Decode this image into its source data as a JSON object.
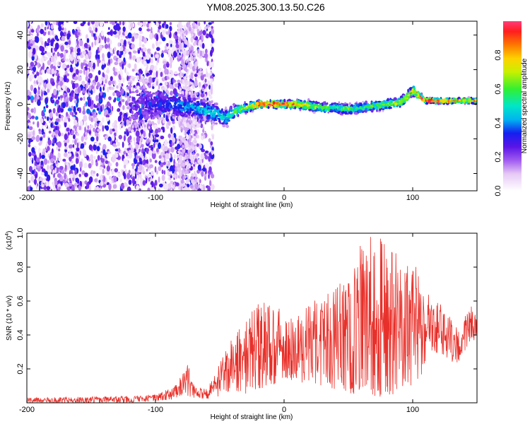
{
  "figure_title": "YM08.2025.300.13.50.C26",
  "chart_data": [
    {
      "type": "heatmap",
      "xlabel": "Height of straight line (km)",
      "ylabel": "Frequency (Hz)",
      "xlim": [
        -200,
        150
      ],
      "ylim": [
        -50,
        48
      ],
      "x_ticks": [
        -200,
        -100,
        0,
        100
      ],
      "y_ticks": [
        -40,
        -20,
        0,
        20,
        40
      ],
      "x_tick_labels": [
        "-200",
        "-100",
        "0",
        "100"
      ],
      "y_tick_labels": [
        "-40",
        "-20",
        "0",
        "20",
        "40"
      ],
      "colorbar": {
        "label": "Normalized spectral amplitude",
        "range": [
          0,
          1
        ],
        "ticks": [
          0,
          0.2,
          0.4,
          0.6,
          0.8
        ],
        "tick_labels": [
          "0.0",
          "0.2",
          "0.4",
          "0.6",
          "0.8"
        ],
        "stops": [
          {
            "v": 0.0,
            "color": "#ffffff"
          },
          {
            "v": 0.1,
            "color": "#e6c8f5"
          },
          {
            "v": 0.18,
            "color": "#a05af0"
          },
          {
            "v": 0.26,
            "color": "#5a14e6"
          },
          {
            "v": 0.34,
            "color": "#1420f0"
          },
          {
            "v": 0.42,
            "color": "#00b4f0"
          },
          {
            "v": 0.5,
            "color": "#00e6c8"
          },
          {
            "v": 0.6,
            "color": "#32f032"
          },
          {
            "v": 0.7,
            "color": "#c8f000"
          },
          {
            "v": 0.78,
            "color": "#ffd200"
          },
          {
            "v": 0.86,
            "color": "#ff7800"
          },
          {
            "v": 0.94,
            "color": "#ff1e1e"
          },
          {
            "v": 1.0,
            "color": "#ff3c78"
          }
        ]
      },
      "ridge": {
        "x": [
          -110,
          -100,
          -90,
          -80,
          -70,
          -60,
          -50,
          -45,
          -40,
          -35,
          -30,
          -20,
          -10,
          0,
          10,
          20,
          30,
          40,
          50,
          60,
          70,
          80,
          90,
          95,
          100,
          105,
          110,
          120,
          130,
          140,
          150
        ],
        "freq": [
          0,
          0,
          0,
          -1,
          -2,
          -4,
          -6,
          -8,
          -5,
          -3,
          -2,
          0,
          0,
          0,
          0,
          -1,
          -2,
          -2,
          -3,
          -2,
          -1,
          0,
          1,
          4,
          8,
          5,
          2,
          2,
          2,
          2,
          2
        ],
        "amplitude": [
          0.25,
          0.3,
          0.35,
          0.4,
          0.42,
          0.45,
          0.48,
          0.45,
          0.55,
          0.6,
          0.65,
          0.9,
          0.95,
          0.9,
          0.85,
          0.7,
          0.6,
          0.55,
          0.6,
          0.55,
          0.6,
          0.65,
          0.7,
          0.75,
          0.8,
          0.85,
          0.9,
          0.9,
          0.85,
          0.8,
          0.8
        ],
        "spread_hz": [
          22,
          14,
          10,
          10,
          9,
          9,
          8,
          7,
          6,
          5,
          4,
          3,
          3,
          3,
          3,
          4,
          4,
          4,
          4,
          4,
          4,
          4,
          4,
          4,
          4,
          3,
          2,
          2,
          2,
          2,
          2
        ]
      }
    },
    {
      "type": "line",
      "xlabel": "Height of straight line (km)",
      "ylabel": "SNR (10 * v/v)",
      "y_multiplier_label": "(x10",
      "y_multiplier_exponent": "4",
      "y_multiplier_close": ")",
      "xlim": [
        -200,
        150
      ],
      "ylim": [
        0,
        1.0
      ],
      "x_ticks": [
        -200,
        -100,
        0,
        100
      ],
      "y_ticks": [
        0.2,
        0.4,
        0.6,
        0.8,
        1.0
      ],
      "x_tick_labels": [
        "-200",
        "-100",
        "0",
        "100"
      ],
      "y_tick_labels": [
        "0.2",
        "0.4",
        "0.6",
        "0.8",
        "1.0"
      ],
      "line_color": "#e8302a",
      "envelope": {
        "x": [
          -200,
          -120,
          -100,
          -85,
          -80,
          -75,
          -70,
          -60,
          -50,
          -40,
          -30,
          -20,
          -10,
          0,
          10,
          20,
          30,
          40,
          50,
          55,
          60,
          65,
          70,
          75,
          80,
          85,
          90,
          95,
          100,
          105,
          110,
          120,
          130,
          135,
          140,
          145,
          150
        ],
        "low": [
          0.0,
          0.0,
          0.01,
          0.02,
          0.04,
          0.04,
          0.03,
          0.02,
          0.04,
          0.08,
          0.05,
          0.08,
          0.1,
          0.15,
          0.12,
          0.12,
          0.1,
          0.08,
          0.06,
          0.05,
          0.04,
          0.05,
          0.04,
          0.03,
          0.03,
          0.05,
          0.08,
          0.08,
          0.1,
          0.12,
          0.25,
          0.3,
          0.25,
          0.2,
          0.3,
          0.35,
          0.38
        ],
        "high": [
          0.03,
          0.04,
          0.05,
          0.1,
          0.18,
          0.24,
          0.1,
          0.08,
          0.25,
          0.4,
          0.48,
          0.6,
          0.58,
          0.55,
          0.5,
          0.6,
          0.62,
          0.7,
          0.75,
          0.8,
          0.95,
          1.0,
          0.98,
          1.0,
          0.9,
          0.95,
          0.88,
          0.82,
          0.85,
          0.78,
          0.65,
          0.6,
          0.5,
          0.45,
          0.5,
          0.62,
          0.55
        ]
      },
      "samples": 1200,
      "seed": 20251300
    }
  ]
}
